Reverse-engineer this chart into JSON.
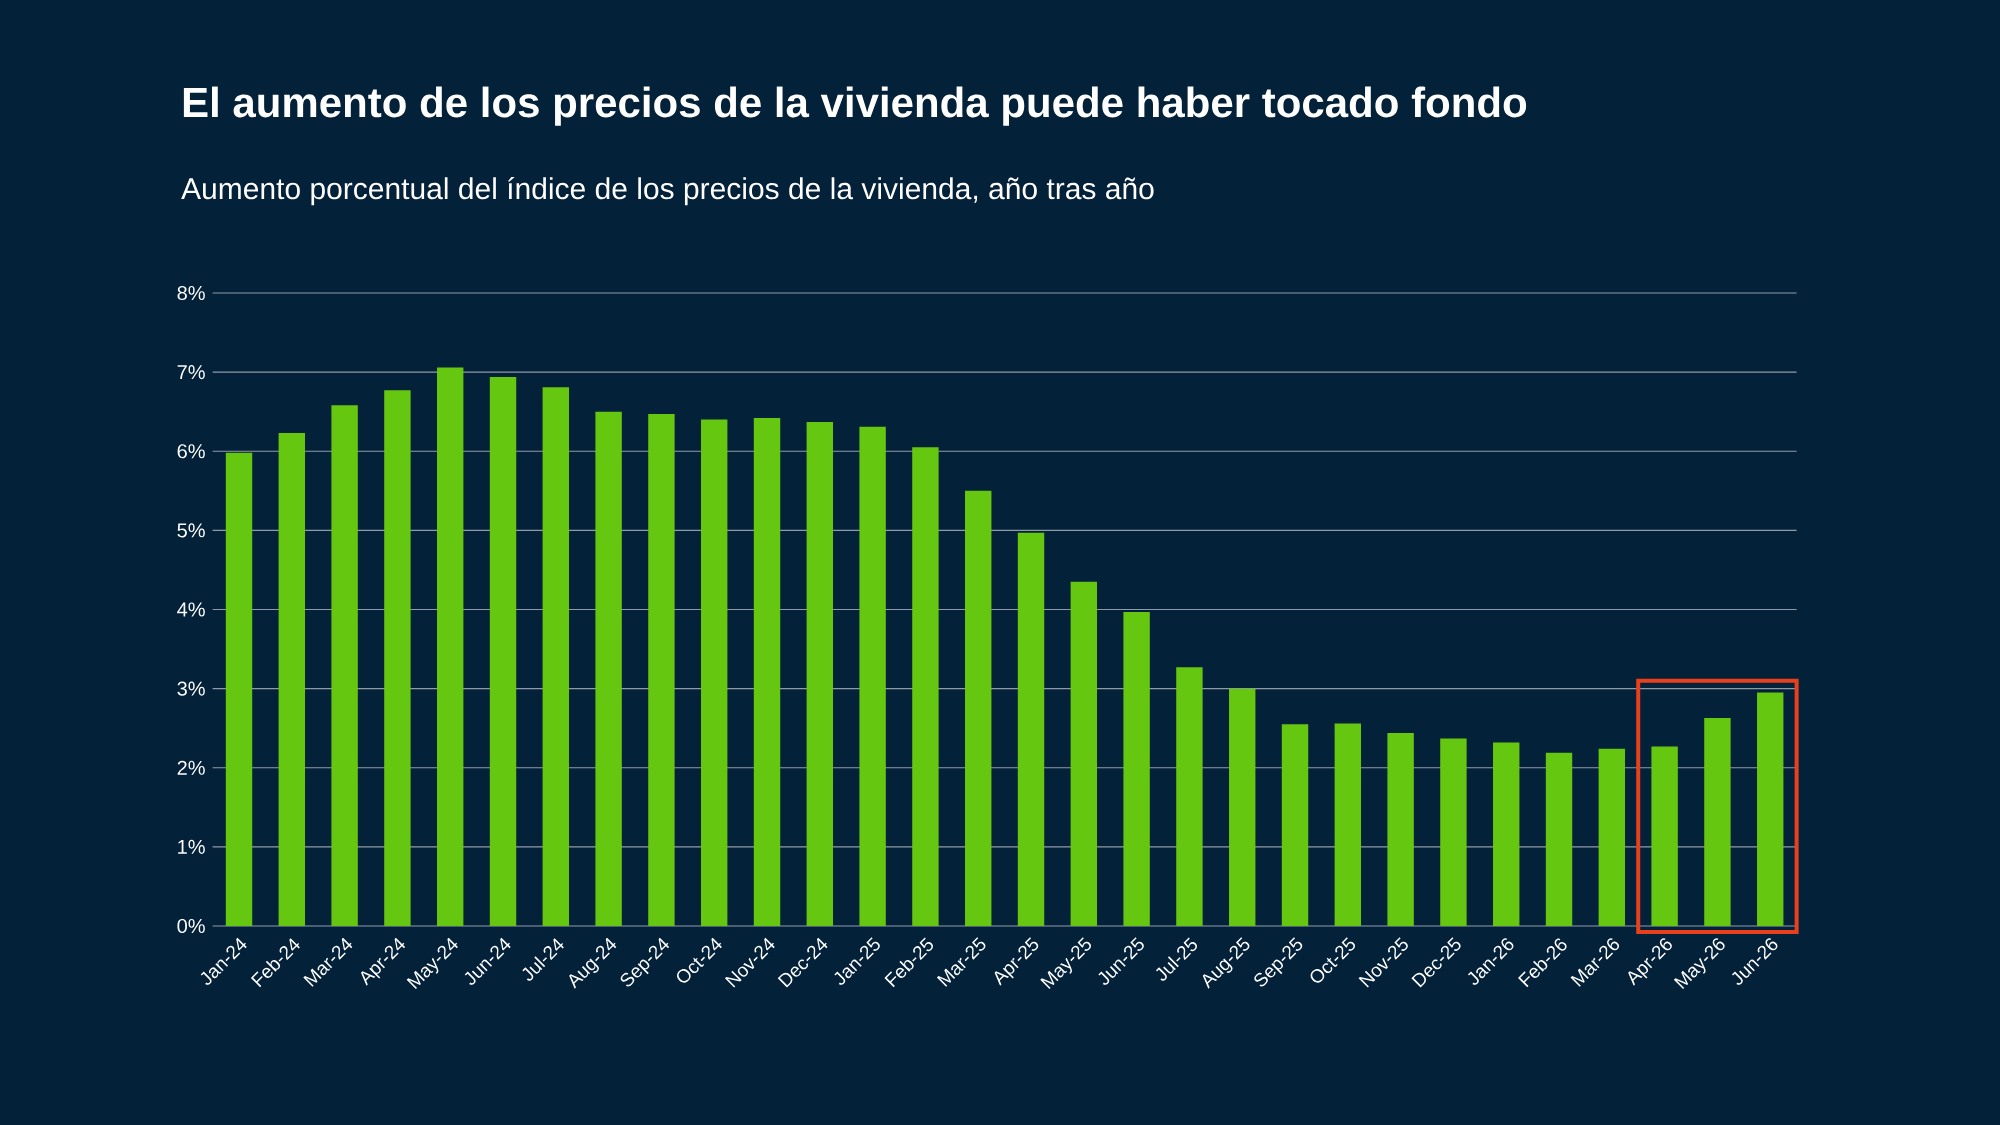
{
  "chart_data": {
    "type": "bar",
    "title": "El aumento de los precios de la vivienda puede haber tocado fondo",
    "subtitle": "Aumento porcentual del índice de los precios de la vivienda, año tras año",
    "categories": [
      "Jan-24",
      "Feb-24",
      "Mar-24",
      "Apr-24",
      "May-24",
      "Jun-24",
      "Jul-24",
      "Aug-24",
      "Sep-24",
      "Oct-24",
      "Nov-24",
      "Dec-24",
      "Jan-25",
      "Feb-25",
      "Mar-25",
      "Apr-25",
      "May-25",
      "Jun-25",
      "Jul-25",
      "Aug-25",
      "Sep-25",
      "Oct-25",
      "Nov-25",
      "Dec-25",
      "Jan-26",
      "Feb-26",
      "Mar-26",
      "Apr-26",
      "May-26",
      "Jun-26"
    ],
    "values": [
      5.98,
      6.23,
      6.58,
      6.77,
      7.06,
      6.94,
      6.81,
      6.5,
      6.47,
      6.4,
      6.42,
      6.37,
      6.31,
      6.05,
      5.5,
      4.97,
      4.35,
      3.97,
      3.27,
      3.0,
      2.55,
      2.56,
      2.44,
      2.37,
      2.32,
      2.19,
      2.24,
      2.27,
      2.63,
      2.95
    ],
    "color": "#66c711",
    "ylim": [
      0,
      8
    ],
    "yticks": [
      {
        "value": 0,
        "label": "0%"
      },
      {
        "value": 1,
        "label": "1%"
      },
      {
        "value": 2,
        "label": "2%"
      },
      {
        "value": 3,
        "label": "3%"
      },
      {
        "value": 4,
        "label": "4%"
      },
      {
        "value": 5,
        "label": "5%"
      },
      {
        "value": 6,
        "label": "6%"
      },
      {
        "value": 7,
        "label": "7%"
      },
      {
        "value": 8,
        "label": "8%"
      }
    ],
    "grid": "y"
  }
}
